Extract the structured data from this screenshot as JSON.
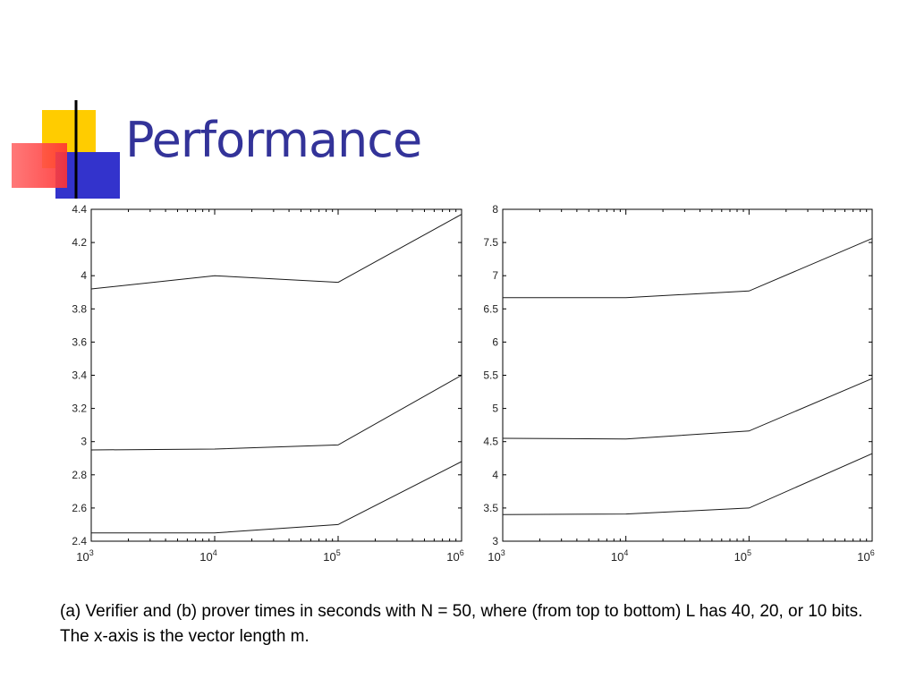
{
  "slide": {
    "title": "Performance",
    "caption": "(a) Verifier and (b) prover times in seconds with N = 50, where (from top to bottom) L has 40, 20, or 10 bits. The x-axis is the vector length m."
  },
  "colors": {
    "title": "#333399",
    "accent_yellow": "#ffcc00",
    "accent_blue": "#3333cc",
    "accent_red": "#ff3333",
    "line": "#000000"
  },
  "chart_data": [
    {
      "type": "line",
      "title": "",
      "xlabel": "",
      "ylabel": "",
      "xscale": "log",
      "x": [
        1000,
        10000,
        100000,
        1000000
      ],
      "x_tick_labels": [
        {
          "base": "10",
          "exp": "3"
        },
        {
          "base": "10",
          "exp": "4"
        },
        {
          "base": "10",
          "exp": "5"
        },
        {
          "base": "10",
          "exp": "6"
        }
      ],
      "ylim": [
        2.4,
        4.4
      ],
      "y_ticks": [
        2.4,
        2.6,
        2.8,
        3,
        3.2,
        3.4,
        3.6,
        3.8,
        4,
        4.2,
        4.4
      ],
      "y_tick_labels": [
        "2.4",
        "2.6",
        "2.8",
        "3",
        "3.2",
        "3.4",
        "3.6",
        "3.8",
        "4",
        "4.2",
        "4.4"
      ],
      "series": [
        {
          "values": [
            3.92,
            4.0,
            3.96,
            4.37
          ]
        },
        {
          "values": [
            2.95,
            2.955,
            2.98,
            3.4
          ]
        },
        {
          "values": [
            2.45,
            2.45,
            2.5,
            2.88
          ]
        }
      ],
      "grid": false,
      "legend": "none"
    },
    {
      "type": "line",
      "title": "",
      "xlabel": "",
      "ylabel": "",
      "xscale": "log",
      "x": [
        1000,
        10000,
        100000,
        1000000
      ],
      "x_tick_labels": [
        {
          "base": "10",
          "exp": "3"
        },
        {
          "base": "10",
          "exp": "4"
        },
        {
          "base": "10",
          "exp": "5"
        },
        {
          "base": "10",
          "exp": "6"
        }
      ],
      "ylim": [
        3,
        8
      ],
      "y_ticks": [
        3,
        3.5,
        4,
        4.5,
        5,
        5.5,
        6,
        6.5,
        7,
        7.5,
        8
      ],
      "y_tick_labels": [
        "3",
        "3.5",
        "4",
        "4.5",
        "5",
        "5.5",
        "6",
        "6.5",
        "7",
        "7.5",
        "8"
      ],
      "series": [
        {
          "values": [
            6.67,
            6.67,
            6.77,
            7.56
          ]
        },
        {
          "values": [
            4.55,
            4.54,
            4.66,
            5.45
          ]
        },
        {
          "values": [
            3.4,
            3.41,
            3.5,
            4.32
          ]
        }
      ],
      "grid": false,
      "legend": "none"
    }
  ]
}
